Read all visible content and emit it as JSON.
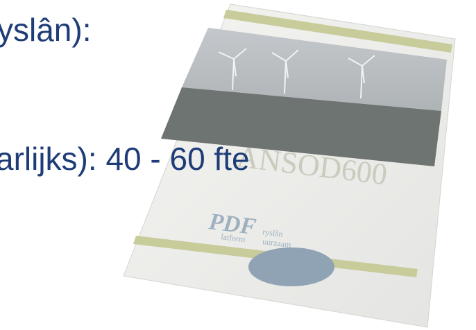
{
  "slide": {
    "lines": [
      "yslân):",
      "arlijks): 40 - 60 fte"
    ]
  },
  "brochure": {
    "title": "ANSOD600",
    "logo": "PDF",
    "logo_lines": [
      "ryslân",
      "latform",
      "uurzaam"
    ]
  }
}
